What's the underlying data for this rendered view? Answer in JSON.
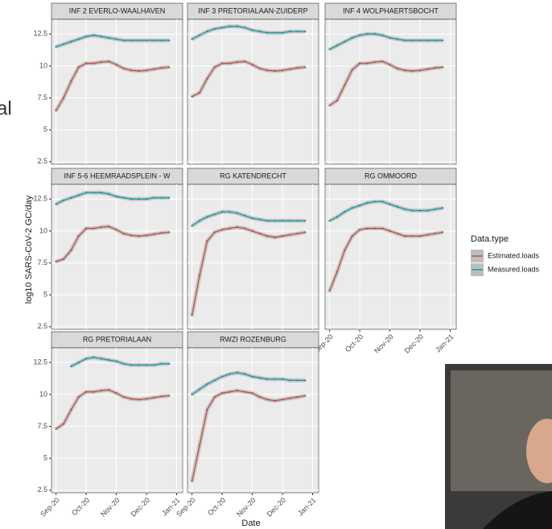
{
  "slide_text": "al",
  "axis_labels": {
    "y": "log10 SARS-CoV-2 GC/day",
    "x": "Date"
  },
  "legend": {
    "title": "Data.type"
  },
  "chart_data": [
    {
      "type": "line",
      "title": "INF 2 EVERLO-WAALHAVEN",
      "x": [
        0,
        0.25,
        0.5,
        0.75,
        1,
        1.25,
        1.5,
        1.75,
        2,
        2.25,
        2.5,
        2.75,
        3,
        3.25,
        3.5,
        3.75
      ],
      "series": [
        {
          "name": "Estimated.loads",
          "color": "#b9534a",
          "values": [
            6.5,
            7.5,
            8.8,
            9.9,
            10.2,
            10.2,
            10.3,
            10.35,
            10.1,
            9.8,
            9.65,
            9.6,
            9.65,
            9.75,
            9.85,
            9.9
          ]
        },
        {
          "name": "Measured.loads",
          "color": "#1a9aa0",
          "values": [
            11.5,
            11.7,
            11.9,
            12.1,
            12.3,
            12.4,
            12.3,
            12.2,
            12.1,
            12.0,
            12.0,
            12.0,
            12.0,
            12.0,
            12.0,
            12.0
          ]
        }
      ],
      "xlim": [
        -0.15,
        4.2
      ],
      "ylim": [
        2.3,
        13.65
      ],
      "yticks": [
        2.5,
        5.0,
        7.5,
        10.0,
        12.5
      ],
      "xticks": [
        {
          "value": 0,
          "label": "Sep-20"
        },
        {
          "value": 1,
          "label": "Oct-20"
        },
        {
          "value": 2,
          "label": "Nov-20"
        },
        {
          "value": 3,
          "label": "Dec-20"
        },
        {
          "value": 4,
          "label": "Jan-21"
        }
      ]
    },
    {
      "type": "line",
      "title": "INF 3 PRETORIALAAN-ZUIDERP",
      "x": [
        0,
        0.25,
        0.5,
        0.75,
        1,
        1.25,
        1.5,
        1.75,
        2,
        2.25,
        2.5,
        2.75,
        3,
        3.25,
        3.5,
        3.75
      ],
      "series": [
        {
          "name": "Estimated.loads",
          "color": "#b9534a",
          "values": [
            7.6,
            7.9,
            9.0,
            9.9,
            10.2,
            10.2,
            10.3,
            10.35,
            10.1,
            9.8,
            9.65,
            9.6,
            9.65,
            9.75,
            9.85,
            9.9
          ]
        },
        {
          "name": "Measured.loads",
          "color": "#1a9aa0",
          "values": [
            12.1,
            12.4,
            12.7,
            12.9,
            13.0,
            13.1,
            13.1,
            13.0,
            12.8,
            12.7,
            12.6,
            12.6,
            12.6,
            12.7,
            12.7,
            12.7
          ]
        }
      ],
      "xlim": [
        -0.15,
        4.2
      ],
      "ylim": [
        2.3,
        13.65
      ],
      "yticks": [
        2.5,
        5.0,
        7.5,
        10.0,
        12.5
      ],
      "xticks": [
        {
          "value": 0,
          "label": "Sep-20"
        },
        {
          "value": 1,
          "label": "Oct-20"
        },
        {
          "value": 2,
          "label": "Nov-20"
        },
        {
          "value": 3,
          "label": "Dec-20"
        },
        {
          "value": 4,
          "label": "Jan-21"
        }
      ]
    },
    {
      "type": "line",
      "title": "INF 4 WOLPHAERTSBOCHT",
      "x": [
        0,
        0.25,
        0.5,
        0.75,
        1,
        1.25,
        1.5,
        1.75,
        2,
        2.25,
        2.5,
        2.75,
        3,
        3.25,
        3.5,
        3.75
      ],
      "series": [
        {
          "name": "Estimated.loads",
          "color": "#b9534a",
          "values": [
            6.9,
            7.3,
            8.5,
            9.7,
            10.2,
            10.2,
            10.3,
            10.35,
            10.1,
            9.8,
            9.65,
            9.6,
            9.65,
            9.75,
            9.85,
            9.9
          ]
        },
        {
          "name": "Measured.loads",
          "color": "#1a9aa0",
          "values": [
            11.3,
            11.6,
            11.9,
            12.2,
            12.4,
            12.5,
            12.5,
            12.4,
            12.2,
            12.1,
            12.0,
            12.0,
            12.0,
            12.0,
            12.0,
            12.0
          ]
        }
      ],
      "xlim": [
        -0.15,
        4.2
      ],
      "ylim": [
        2.3,
        13.65
      ],
      "yticks": [
        2.5,
        5.0,
        7.5,
        10.0,
        12.5
      ],
      "xticks": [
        {
          "value": 0,
          "label": "Sep-20"
        },
        {
          "value": 1,
          "label": "Oct-20"
        },
        {
          "value": 2,
          "label": "Nov-20"
        },
        {
          "value": 3,
          "label": "Dec-20"
        },
        {
          "value": 4,
          "label": "Jan-21"
        }
      ]
    },
    {
      "type": "line",
      "title": "INF 5-6 HEEMRAADSPLEIN - W",
      "x": [
        0,
        0.25,
        0.5,
        0.75,
        1,
        1.25,
        1.5,
        1.75,
        2,
        2.25,
        2.5,
        2.75,
        3,
        3.25,
        3.5,
        3.75
      ],
      "series": [
        {
          "name": "Estimated.loads",
          "color": "#b9534a",
          "values": [
            7.6,
            7.8,
            8.5,
            9.6,
            10.2,
            10.2,
            10.3,
            10.35,
            10.1,
            9.8,
            9.65,
            9.6,
            9.65,
            9.75,
            9.85,
            9.9
          ]
        },
        {
          "name": "Measured.loads",
          "color": "#1a9aa0",
          "values": [
            12.1,
            12.4,
            12.6,
            12.8,
            13.0,
            13.0,
            13.0,
            12.9,
            12.7,
            12.6,
            12.5,
            12.5,
            12.5,
            12.6,
            12.6,
            12.6
          ]
        }
      ],
      "xlim": [
        -0.15,
        4.2
      ],
      "ylim": [
        2.3,
        13.65
      ],
      "yticks": [
        2.5,
        5.0,
        7.5,
        10.0,
        12.5
      ],
      "xticks": [
        {
          "value": 0,
          "label": "Sep-20"
        },
        {
          "value": 1,
          "label": "Oct-20"
        },
        {
          "value": 2,
          "label": "Nov-20"
        },
        {
          "value": 3,
          "label": "Dec-20"
        },
        {
          "value": 4,
          "label": "Jan-21"
        }
      ]
    },
    {
      "type": "line",
      "title": "RG KATENDRECHT",
      "x": [
        0,
        0.25,
        0.5,
        0.75,
        1,
        1.25,
        1.5,
        1.75,
        2,
        2.25,
        2.5,
        2.75,
        3,
        3.25,
        3.5,
        3.75
      ],
      "series": [
        {
          "name": "Estimated.loads",
          "color": "#b9534a",
          "values": [
            3.4,
            6.5,
            9.2,
            9.9,
            10.1,
            10.2,
            10.3,
            10.2,
            10.0,
            9.8,
            9.6,
            9.5,
            9.6,
            9.7,
            9.8,
            9.9
          ]
        },
        {
          "name": "Measured.loads",
          "color": "#1a9aa0",
          "values": [
            10.4,
            10.8,
            11.1,
            11.3,
            11.5,
            11.5,
            11.4,
            11.2,
            11.0,
            10.9,
            10.8,
            10.8,
            10.8,
            10.8,
            10.8,
            10.8
          ]
        }
      ],
      "xlim": [
        -0.15,
        4.2
      ],
      "ylim": [
        2.3,
        13.65
      ],
      "yticks": [
        2.5,
        5.0,
        7.5,
        10.0,
        12.5
      ],
      "xticks": [
        {
          "value": 0,
          "label": "Sep-20"
        },
        {
          "value": 1,
          "label": "Oct-20"
        },
        {
          "value": 2,
          "label": "Nov-20"
        },
        {
          "value": 3,
          "label": "Dec-20"
        },
        {
          "value": 4,
          "label": "Jan-21"
        }
      ]
    },
    {
      "type": "line",
      "title": "RG OMMOORD",
      "x": [
        0,
        0.25,
        0.5,
        0.75,
        1,
        1.25,
        1.5,
        1.75,
        2,
        2.25,
        2.5,
        2.75,
        3,
        3.25,
        3.5,
        3.75
      ],
      "series": [
        {
          "name": "Estimated.loads",
          "color": "#b9534a",
          "values": [
            5.3,
            6.8,
            8.5,
            9.6,
            10.1,
            10.2,
            10.2,
            10.2,
            10.0,
            9.8,
            9.6,
            9.6,
            9.6,
            9.7,
            9.8,
            9.9
          ]
        },
        {
          "name": "Measured.loads",
          "color": "#1a9aa0",
          "values": [
            10.8,
            11.1,
            11.5,
            11.8,
            12.0,
            12.2,
            12.3,
            12.3,
            12.1,
            11.9,
            11.7,
            11.6,
            11.6,
            11.6,
            11.7,
            11.8
          ]
        }
      ],
      "xlim": [
        -0.15,
        4.2
      ],
      "ylim": [
        2.3,
        13.65
      ],
      "yticks": [
        2.5,
        5.0,
        7.5,
        10.0,
        12.5
      ],
      "xticks": [
        {
          "value": 0,
          "label": "Sep-20"
        },
        {
          "value": 1,
          "label": "Oct-20"
        },
        {
          "value": 2,
          "label": "Nov-20"
        },
        {
          "value": 3,
          "label": "Dec-20"
        },
        {
          "value": 4,
          "label": "Jan-21"
        }
      ]
    },
    {
      "type": "line",
      "title": "RG PRETORIALAAN",
      "x": [
        0,
        0.25,
        0.5,
        0.75,
        1,
        1.25,
        1.5,
        1.75,
        2,
        2.25,
        2.5,
        2.75,
        3,
        3.25,
        3.5,
        3.75
      ],
      "series": [
        {
          "name": "Estimated.loads",
          "color": "#b9534a",
          "values": [
            7.3,
            7.7,
            8.8,
            9.8,
            10.2,
            10.2,
            10.3,
            10.35,
            10.1,
            9.8,
            9.65,
            9.6,
            9.65,
            9.75,
            9.85,
            9.9
          ]
        },
        {
          "name": "Measured.loads",
          "color": "#1a9aa0",
          "values": [
            null,
            null,
            12.2,
            12.5,
            12.8,
            12.9,
            12.8,
            12.7,
            12.6,
            12.4,
            12.3,
            12.3,
            12.3,
            12.3,
            12.4,
            12.4
          ]
        }
      ],
      "xlim": [
        -0.15,
        4.2
      ],
      "ylim": [
        2.3,
        13.65
      ],
      "yticks": [
        2.5,
        5.0,
        7.5,
        10.0,
        12.5
      ],
      "xticks": [
        {
          "value": 0,
          "label": "Sep-20"
        },
        {
          "value": 1,
          "label": "Oct-20"
        },
        {
          "value": 2,
          "label": "Nov-20"
        },
        {
          "value": 3,
          "label": "Dec-20"
        },
        {
          "value": 4,
          "label": "Jan-21"
        }
      ]
    },
    {
      "type": "line",
      "title": "RWZI ROZENBURG",
      "x": [
        0,
        0.25,
        0.5,
        0.75,
        1,
        1.25,
        1.5,
        1.75,
        2,
        2.25,
        2.5,
        2.75,
        3,
        3.25,
        3.5,
        3.75
      ],
      "series": [
        {
          "name": "Estimated.loads",
          "color": "#b9534a",
          "values": [
            3.2,
            6.0,
            8.8,
            9.8,
            10.1,
            10.2,
            10.3,
            10.2,
            10.1,
            9.8,
            9.6,
            9.5,
            9.6,
            9.7,
            9.8,
            9.9
          ]
        },
        {
          "name": "Measured.loads",
          "color": "#1a9aa0",
          "values": [
            10.0,
            10.4,
            10.8,
            11.1,
            11.4,
            11.6,
            11.7,
            11.6,
            11.4,
            11.3,
            11.2,
            11.2,
            11.2,
            11.1,
            11.1,
            11.1
          ]
        }
      ],
      "xlim": [
        -0.15,
        4.2
      ],
      "ylim": [
        2.3,
        13.65
      ],
      "yticks": [
        2.5,
        5.0,
        7.5,
        10.0,
        12.5
      ],
      "xticks": [
        {
          "value": 0,
          "label": "Sep-20"
        },
        {
          "value": 1,
          "label": "Oct-20"
        },
        {
          "value": 2,
          "label": "Nov-20"
        },
        {
          "value": 3,
          "label": "Dec-20"
        },
        {
          "value": 4,
          "label": "Jan-21"
        }
      ]
    }
  ]
}
